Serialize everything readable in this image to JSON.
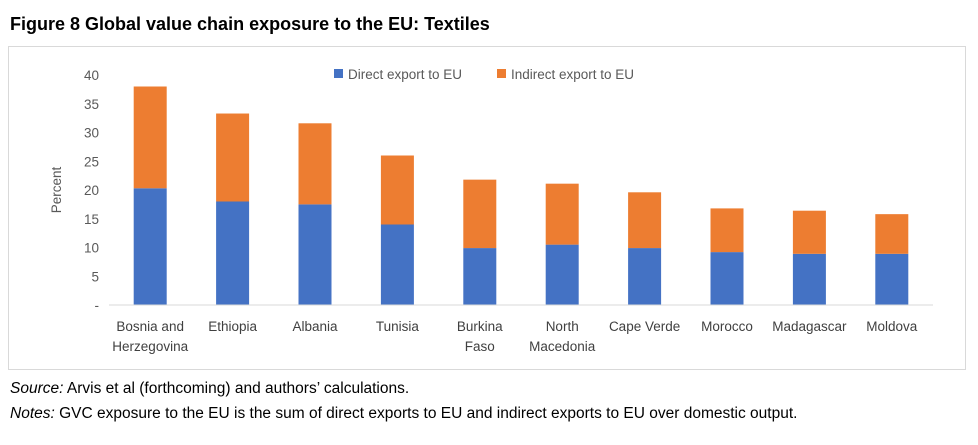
{
  "figure_title": "Figure 8 Global value chain exposure to the EU: Textiles",
  "source_label": "Source:",
  "source_text": " Arvis et al (forthcoming) and authors’ calculations.",
  "notes_label": "Notes:",
  "notes_text": " GVC exposure to the EU is the sum of direct exports to EU and indirect exports to EU over domestic output.",
  "colors": {
    "direct": "#4472c4",
    "indirect": "#ed7d31"
  },
  "chart_data": {
    "type": "bar",
    "stacked": true,
    "categories": [
      [
        "Bosnia and",
        "Herzegovina"
      ],
      [
        "Ethiopia"
      ],
      [
        "Albania"
      ],
      [
        "Tunisia"
      ],
      [
        "Burkina",
        "Faso"
      ],
      [
        "North",
        "Macedonia"
      ],
      [
        "Cape Verde"
      ],
      [
        "Morocco"
      ],
      [
        "Madagascar"
      ],
      [
        "Moldova"
      ]
    ],
    "series": [
      {
        "name": "Direct export to EU",
        "color": "#4472c4",
        "values": [
          20.3,
          18.0,
          17.5,
          14.0,
          9.9,
          10.5,
          9.9,
          9.2,
          8.9,
          8.9
        ]
      },
      {
        "name": "Indirect export to EU",
        "color": "#ed7d31",
        "values": [
          17.7,
          15.3,
          14.1,
          12.0,
          11.9,
          10.6,
          9.7,
          7.6,
          7.5,
          6.9
        ]
      }
    ],
    "ylabel": "Percent",
    "ylim": [
      0,
      40
    ],
    "yticks": [
      "-",
      "5",
      "10",
      "15",
      "20",
      "25",
      "30",
      "35",
      "40"
    ],
    "legend_position": "top-center",
    "grid": false
  }
}
